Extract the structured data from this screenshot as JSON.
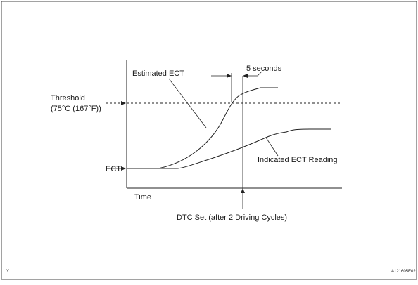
{
  "diagram": {
    "labels": {
      "estimated_ect": "Estimated ECT",
      "five_seconds": "5 seconds",
      "threshold_line1": "Threshold",
      "threshold_line2": "(75°C (167°F))",
      "ect": "ECT",
      "indicated_ect": "Indicated ECT Reading",
      "time": "Time",
      "dtc_set": "DTC Set (after 2 Driving Cycles)"
    },
    "corner": {
      "left_code": "Y",
      "figure_id": "A121605E02"
    }
  }
}
